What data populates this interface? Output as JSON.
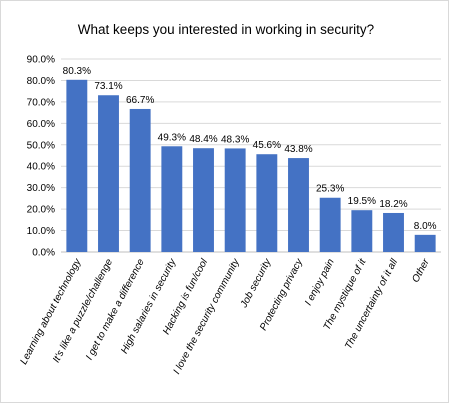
{
  "chart_data": {
    "type": "bar",
    "title": "What keeps you interested in working in security?",
    "xlabel": "",
    "ylabel": "",
    "categories": [
      "Learning about technology",
      "It's like a puzzle/challenge",
      "I get to make a difference",
      "High salaries in security",
      "Hacking is fun/cool",
      "I love the security community",
      "Job security",
      "Protecting privacy",
      "I enjoy pain",
      "The mystique of it",
      "The uncertainty of it all",
      "Other"
    ],
    "values": [
      80.3,
      73.1,
      66.7,
      49.3,
      48.4,
      48.3,
      45.6,
      43.8,
      25.3,
      19.5,
      18.2,
      8.0
    ],
    "data_labels": [
      "80.3%",
      "73.1%",
      "66.7%",
      "49.3%",
      "48.4%",
      "48.3%",
      "45.6%",
      "43.8%",
      "25.3%",
      "19.5%",
      "18.2%",
      "8.0%"
    ],
    "ylim": [
      0,
      90
    ],
    "yticks": [
      0,
      10,
      20,
      30,
      40,
      50,
      60,
      70,
      80,
      90
    ],
    "ytick_labels": [
      "0.0%",
      "10.0%",
      "20.0%",
      "30.0%",
      "40.0%",
      "50.0%",
      "60.0%",
      "70.0%",
      "80.0%",
      "90.0%"
    ],
    "grid": true,
    "legend": "none",
    "bar_color": "#4472c4"
  }
}
